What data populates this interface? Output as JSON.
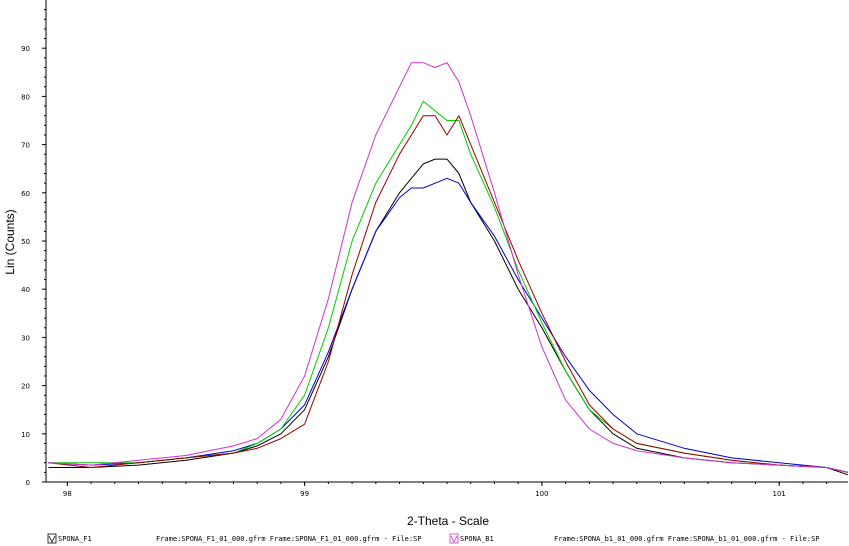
{
  "chart_data": {
    "type": "line",
    "xlabel": "2-Theta - Scale",
    "ylabel": "Lin (Counts)",
    "xlim": [
      97.91,
      101.29
    ],
    "ylim": [
      0,
      100
    ],
    "x_ticks": [
      "98",
      "99",
      "100",
      "101"
    ],
    "y_ticks": [
      "0",
      "10",
      "20",
      "30",
      "40",
      "50",
      "60",
      "70",
      "80",
      "90"
    ],
    "grid": false,
    "legend": {
      "position": "bottom",
      "entries": [
        {
          "label": "SPONA_F1",
          "color": "#000000"
        },
        {
          "label": "Frame:SPONA_F1_01_000.gfrm Frame:SPONA_F1_01_000.gfrm - File:SP",
          "color": "#000000"
        },
        {
          "label": "SPONA_B1",
          "color": "#cc33cc"
        },
        {
          "label": "Frame:SPONA_b1_01_000.gfrm Frame:SPONA_b1_01_000.gfrm - File:SP",
          "color": "#000000"
        }
      ]
    },
    "x": [
      97.92,
      98.1,
      98.3,
      98.5,
      98.7,
      98.8,
      98.9,
      99.0,
      99.1,
      99.2,
      99.3,
      99.4,
      99.45,
      99.5,
      99.55,
      99.6,
      99.65,
      99.7,
      99.8,
      99.9,
      100.0,
      100.1,
      100.2,
      100.3,
      100.4,
      100.6,
      100.8,
      101.0,
      101.2,
      101.29
    ],
    "series": [
      {
        "color": "#000000",
        "values": [
          3,
          3,
          3.5,
          4.5,
          6,
          7.5,
          10,
          15,
          26,
          40,
          52,
          60,
          63,
          66,
          67,
          67,
          64,
          58,
          50,
          40,
          32,
          23,
          15,
          10,
          7,
          5,
          4,
          3.5,
          3,
          1.5
        ]
      },
      {
        "color": "#0000cc",
        "values": [
          4,
          3.5,
          4,
          5,
          6.5,
          8,
          11,
          16,
          27,
          40,
          52,
          59,
          61,
          61,
          62,
          63,
          62,
          58,
          51,
          42,
          34,
          26,
          19,
          14,
          10,
          7,
          5,
          4,
          3,
          2
        ]
      },
      {
        "color": "#00cc00",
        "values": [
          4,
          4,
          4,
          5,
          6,
          8,
          11,
          18,
          32,
          50,
          62,
          70,
          74,
          79,
          77,
          75,
          75,
          68,
          57,
          44,
          33,
          23,
          15,
          11,
          8,
          6,
          4.5,
          3.5,
          3,
          2
        ]
      },
      {
        "color": "#990000",
        "values": [
          4,
          3,
          4,
          5,
          6,
          7,
          9,
          12,
          25,
          43,
          58,
          68,
          72,
          76,
          76,
          72,
          76,
          70,
          58,
          46,
          35,
          25,
          16,
          11,
          8,
          6,
          4.5,
          3.5,
          3,
          2
        ]
      },
      {
        "color": "#cc33cc",
        "values": [
          4,
          3.5,
          4.5,
          5.5,
          7.5,
          9,
          13,
          22,
          38,
          58,
          72,
          82,
          87,
          87,
          86,
          87,
          83,
          76,
          60,
          43,
          28,
          17,
          11,
          8,
          6.5,
          5,
          4,
          3.5,
          3,
          2
        ]
      }
    ]
  }
}
